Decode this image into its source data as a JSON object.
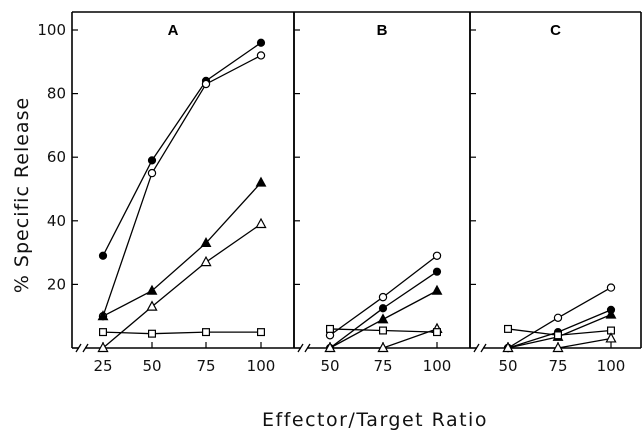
{
  "chart_data": {
    "type": "line",
    "xlabel": "Effector/Target Ratio",
    "ylabel": "% Specific Release",
    "ylim": [
      0,
      100
    ],
    "yticks": [
      "100",
      "80",
      "60",
      "40",
      "20"
    ],
    "panels": [
      {
        "label": "A",
        "x": [
          25,
          50,
          75,
          100
        ],
        "xticks": [
          "25",
          "50",
          "75",
          "100"
        ],
        "series": [
          {
            "marker": "filled-circle",
            "values": [
              29,
              59,
              84,
              96
            ]
          },
          {
            "marker": "open-circle",
            "values": [
              10,
              55,
              83,
              92
            ]
          },
          {
            "marker": "filled-triangle",
            "values": [
              10,
              18,
              33,
              52
            ]
          },
          {
            "marker": "open-triangle",
            "values": [
              0,
              13,
              27,
              39
            ]
          },
          {
            "marker": "open-square",
            "values": [
              5,
              4.5,
              5,
              5
            ]
          }
        ]
      },
      {
        "label": "B",
        "x": [
          50,
          75,
          100
        ],
        "xticks": [
          "50",
          "75",
          "100"
        ],
        "series": [
          {
            "marker": "open-circle",
            "values": [
              4,
              16,
              29
            ]
          },
          {
            "marker": "filled-circle",
            "values": [
              0,
              12.5,
              24
            ]
          },
          {
            "marker": "filled-triangle",
            "values": [
              0,
              9,
              18
            ]
          },
          {
            "marker": "open-triangle",
            "values": [
              0,
              0,
              6
            ]
          },
          {
            "marker": "open-square",
            "values": [
              6,
              5.5,
              5
            ]
          }
        ]
      },
      {
        "label": "C",
        "x": [
          50,
          75,
          100
        ],
        "xticks": [
          "50",
          "75",
          "100"
        ],
        "series": [
          {
            "marker": "open-circle",
            "values": [
              0,
              9.5,
              19
            ]
          },
          {
            "marker": "filled-circle",
            "values": [
              0,
              5,
              12
            ]
          },
          {
            "marker": "filled-triangle",
            "values": [
              0,
              3.5,
              10.5
            ]
          },
          {
            "marker": "open-square",
            "values": [
              6,
              4,
              5.5
            ]
          },
          {
            "marker": "open-triangle",
            "values": [
              0,
              0,
              3
            ]
          }
        ]
      }
    ]
  }
}
